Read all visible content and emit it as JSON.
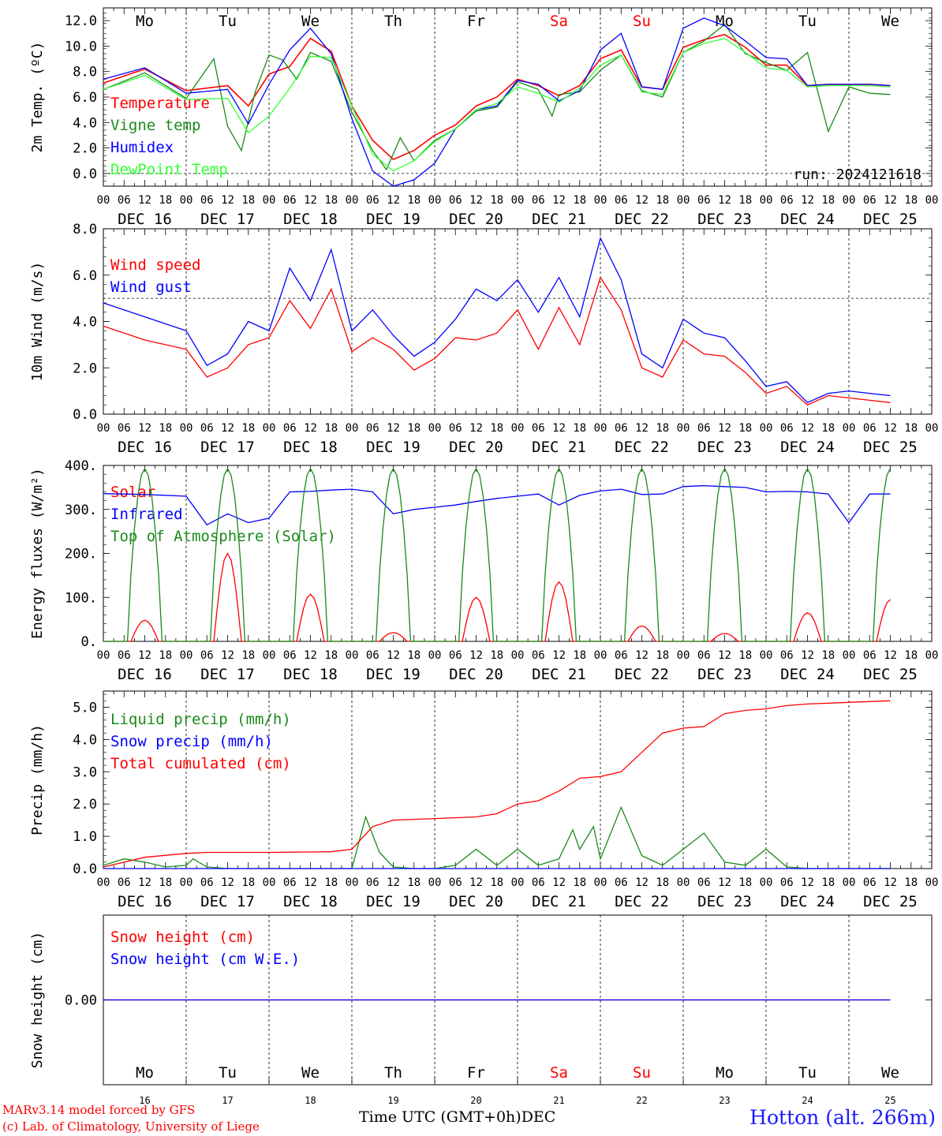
{
  "chart_data": [
    {
      "type": "line",
      "ylabel": "2m Temp. (ºC)",
      "ylim": [
        -1.0,
        13.0
      ],
      "yticks": [
        "0.0",
        "2.0",
        "4.0",
        "6.0",
        "8.0",
        "10.0",
        "12.0"
      ],
      "run_label": "run: 2024121618",
      "series": [
        {
          "name": "Temperature",
          "color": "#ff0000",
          "x": [
            0,
            12,
            24,
            36,
            42,
            48,
            54,
            60,
            66,
            72,
            78,
            84,
            90,
            96,
            102,
            108,
            114,
            120,
            126,
            132,
            138,
            144,
            150,
            156,
            162,
            168,
            174,
            180,
            186,
            192,
            198,
            204,
            210,
            216,
            222,
            228
          ],
          "y": [
            7.1,
            8.2,
            6.5,
            6.9,
            5.3,
            7.8,
            8.4,
            10.6,
            9.6,
            5.3,
            2.6,
            1.1,
            1.8,
            3.0,
            3.8,
            5.3,
            6.0,
            7.4,
            6.9,
            6.1,
            6.9,
            9.0,
            9.7,
            6.8,
            6.6,
            9.9,
            10.5,
            10.9,
            9.9,
            8.5,
            8.5,
            6.9,
            7.0,
            7.0,
            7.0,
            6.9
          ]
        },
        {
          "name": "Vigne temp",
          "color": "#1a8a1a",
          "x": [
            0,
            12,
            24,
            32,
            36,
            40,
            44,
            48,
            52,
            56,
            60,
            66,
            72,
            78,
            82,
            86,
            90,
            96,
            102,
            108,
            114,
            120,
            126,
            130,
            132,
            138,
            144,
            150,
            156,
            162,
            168,
            174,
            180,
            186,
            192,
            198,
            204,
            210,
            216,
            222,
            228
          ],
          "y": [
            6.6,
            7.9,
            5.9,
            9.0,
            3.7,
            1.8,
            6.4,
            9.3,
            8.9,
            7.4,
            9.5,
            8.8,
            4.8,
            1.8,
            0.3,
            2.8,
            1.0,
            2.6,
            3.5,
            4.9,
            5.2,
            7.2,
            6.6,
            4.5,
            6.2,
            6.4,
            8.1,
            9.3,
            6.5,
            6.0,
            9.5,
            10.4,
            11.7,
            9.4,
            8.7,
            8.1,
            9.5,
            3.3,
            6.8,
            6.3,
            6.2
          ]
        },
        {
          "name": "Humidex",
          "color": "#0000ff",
          "x": [
            0,
            12,
            24,
            36,
            42,
            48,
            54,
            60,
            66,
            72,
            78,
            84,
            90,
            96,
            102,
            108,
            114,
            120,
            126,
            132,
            138,
            144,
            150,
            156,
            162,
            168,
            174,
            180,
            186,
            192,
            198,
            204,
            210,
            216,
            222,
            228
          ],
          "y": [
            7.4,
            8.3,
            6.3,
            6.6,
            3.9,
            7.0,
            9.7,
            11.4,
            9.4,
            4.3,
            0.2,
            -1.0,
            -0.5,
            0.8,
            3.5,
            5.0,
            5.3,
            7.3,
            7.0,
            5.7,
            6.5,
            9.7,
            11.0,
            6.8,
            6.6,
            11.4,
            12.2,
            11.6,
            10.4,
            9.1,
            9.0,
            6.9,
            7.0,
            7.0,
            7.0,
            6.9
          ]
        },
        {
          "name": "DewPoint Temp",
          "color": "#33ff33",
          "x": [
            0,
            12,
            24,
            36,
            42,
            48,
            54,
            60,
            66,
            72,
            78,
            84,
            90,
            96,
            102,
            108,
            114,
            120,
            126,
            132,
            138,
            144,
            150,
            156,
            162,
            168,
            174,
            180,
            186,
            192,
            198,
            204,
            210,
            216,
            222,
            228
          ],
          "y": [
            6.6,
            7.7,
            5.8,
            5.9,
            3.2,
            4.5,
            6.7,
            9.2,
            9.1,
            5.3,
            1.5,
            0.2,
            1.0,
            2.5,
            3.5,
            5.0,
            5.5,
            6.8,
            6.3,
            5.6,
            6.7,
            8.5,
            9.3,
            6.4,
            6.2,
            9.5,
            10.2,
            10.6,
            9.5,
            8.3,
            8.1,
            6.8,
            6.9,
            6.9,
            6.9,
            6.8
          ]
        }
      ]
    },
    {
      "type": "line",
      "ylabel": "10m Wind (m/s)",
      "ylim": [
        0.0,
        8.0
      ],
      "yticks": [
        "0.0",
        "2.0",
        "4.0",
        "6.0",
        "8.0"
      ],
      "series": [
        {
          "name": "Wind speed",
          "color": "#ff0000",
          "x": [
            0,
            12,
            24,
            30,
            36,
            42,
            48,
            54,
            60,
            66,
            72,
            78,
            84,
            90,
            96,
            102,
            108,
            114,
            120,
            126,
            132,
            138,
            144,
            150,
            156,
            162,
            168,
            174,
            180,
            186,
            192,
            198,
            204,
            210,
            216,
            222,
            228
          ],
          "y": [
            3.8,
            3.2,
            2.8,
            1.6,
            2.0,
            3.0,
            3.3,
            4.9,
            3.7,
            5.4,
            2.7,
            3.3,
            2.8,
            1.9,
            2.4,
            3.3,
            3.2,
            3.5,
            4.5,
            2.8,
            4.6,
            3.0,
            5.9,
            4.5,
            2.0,
            1.6,
            3.2,
            2.6,
            2.5,
            1.8,
            0.9,
            1.2,
            0.4,
            0.8,
            0.7,
            0.6,
            0.5
          ]
        },
        {
          "name": "Wind gust",
          "color": "#0000ff",
          "x": [
            0,
            12,
            24,
            30,
            36,
            42,
            48,
            54,
            60,
            66,
            72,
            78,
            84,
            90,
            96,
            102,
            108,
            114,
            120,
            126,
            132,
            138,
            144,
            150,
            156,
            162,
            168,
            174,
            180,
            186,
            192,
            198,
            204,
            210,
            216,
            222,
            228
          ],
          "y": [
            4.8,
            4.2,
            3.6,
            2.1,
            2.6,
            4.0,
            3.6,
            6.3,
            4.9,
            7.1,
            3.6,
            4.5,
            3.4,
            2.5,
            3.1,
            4.1,
            5.4,
            4.9,
            5.8,
            4.4,
            5.9,
            4.2,
            7.6,
            5.8,
            2.6,
            2.0,
            4.1,
            3.5,
            3.3,
            2.3,
            1.2,
            1.4,
            0.5,
            0.9,
            1.0,
            0.9,
            0.8
          ]
        }
      ]
    },
    {
      "type": "line",
      "ylabel": "Energy fluxes (W/m²)",
      "ylim": [
        0,
        400
      ],
      "yticks": [
        "0.",
        "100.",
        "200.",
        "300.",
        "400."
      ],
      "series": [
        {
          "name": "Solar",
          "color": "#ff0000",
          "peaks": [
            48,
            200,
            107,
            20,
            100,
            135,
            35,
            18,
            65,
            95
          ]
        },
        {
          "name": "Infrared",
          "color": "#0000ff",
          "x": [
            0,
            12,
            24,
            30,
            36,
            42,
            48,
            54,
            60,
            66,
            72,
            78,
            84,
            90,
            96,
            102,
            108,
            114,
            120,
            126,
            132,
            138,
            144,
            150,
            156,
            162,
            168,
            174,
            180,
            186,
            192,
            198,
            204,
            210,
            216,
            222,
            228
          ],
          "y": [
            336,
            334,
            330,
            265,
            290,
            270,
            280,
            340,
            341,
            344,
            346,
            340,
            290,
            300,
            305,
            310,
            318,
            325,
            330,
            335,
            310,
            332,
            342,
            346,
            334,
            335,
            352,
            354,
            352,
            350,
            340,
            341,
            340,
            335,
            270,
            335,
            335
          ]
        },
        {
          "name": "Top of Atmosphere (Solar)",
          "color": "#1a8a1a",
          "daily_peak": 393
        }
      ]
    },
    {
      "type": "line",
      "ylabel": "Precip (mm/h)",
      "ylim": [
        0.0,
        5.5
      ],
      "yticks": [
        "0.0",
        "1.0",
        "2.0",
        "3.0",
        "4.0",
        "5.0"
      ],
      "series": [
        {
          "name": "Liquid precip (mm/h)",
          "color": "#1a8a1a",
          "x": [
            0,
            6,
            12,
            18,
            24,
            26,
            30,
            36,
            48,
            72,
            76,
            80,
            84,
            90,
            96,
            102,
            108,
            114,
            120,
            126,
            132,
            136,
            138,
            142,
            144,
            150,
            156,
            162,
            168,
            174,
            180,
            186,
            192,
            198,
            204,
            210,
            216,
            222,
            228
          ],
          "y": [
            0.1,
            0.3,
            0.2,
            0.05,
            0.1,
            0.3,
            0.05,
            0.0,
            0.0,
            0.0,
            1.6,
            0.5,
            0.05,
            0.0,
            0.0,
            0.1,
            0.6,
            0.1,
            0.6,
            0.1,
            0.3,
            1.2,
            0.6,
            1.3,
            0.3,
            1.9,
            0.4,
            0.1,
            0.6,
            1.1,
            0.2,
            0.1,
            0.6,
            0.05,
            0.0,
            0.0,
            0.0,
            0.0,
            0.0
          ]
        },
        {
          "name": "Snow precip (mm/h)",
          "color": "#0000ff",
          "x": [
            0,
            228
          ],
          "y": [
            0.0,
            0.0
          ]
        },
        {
          "name": "Total cumulated (cm)",
          "color": "#ff0000",
          "x": [
            0,
            12,
            24,
            30,
            48,
            66,
            72,
            78,
            84,
            96,
            108,
            114,
            120,
            126,
            132,
            138,
            144,
            150,
            156,
            162,
            168,
            174,
            180,
            186,
            192,
            198,
            204,
            216,
            228
          ],
          "y": [
            0.05,
            0.35,
            0.47,
            0.5,
            0.5,
            0.52,
            0.6,
            1.3,
            1.5,
            1.55,
            1.6,
            1.7,
            2.0,
            2.1,
            2.4,
            2.8,
            2.85,
            3.0,
            3.6,
            4.2,
            4.35,
            4.4,
            4.8,
            4.9,
            4.95,
            5.05,
            5.1,
            5.15,
            5.2
          ]
        }
      ]
    },
    {
      "type": "line",
      "ylabel": "Snow height (cm)",
      "yticks": [
        "0.00"
      ],
      "series": [
        {
          "name": "Snow height (cm)",
          "color": "#ff0000",
          "x": [
            0,
            228
          ],
          "y": [
            0.0,
            0.0
          ]
        },
        {
          "name": "Snow height (cm W.E.)",
          "color": "#0000ff",
          "x": [
            0,
            228
          ],
          "y": [
            0.0,
            0.0
          ]
        }
      ]
    }
  ],
  "x_axis": {
    "hour_labels": [
      "00",
      "06",
      "12",
      "18"
    ],
    "end_label": "00",
    "date_labels": [
      "DEC 16",
      "DEC 17",
      "DEC 18",
      "DEC 19",
      "DEC 20",
      "DEC 21",
      "DEC 22",
      "DEC 23",
      "DEC 24",
      "DEC 25"
    ],
    "day_labels": [
      {
        "text": "Mo",
        "weekend": false
      },
      {
        "text": "Tu",
        "weekend": false
      },
      {
        "text": "We",
        "weekend": false
      },
      {
        "text": "Th",
        "weekend": false
      },
      {
        "text": "Fr",
        "weekend": false
      },
      {
        "text": "Sa",
        "weekend": true
      },
      {
        "text": "Su",
        "weekend": true
      },
      {
        "text": "Mo",
        "weekend": false
      },
      {
        "text": "Tu",
        "weekend": false
      },
      {
        "text": "We",
        "weekend": false
      }
    ],
    "day_numbers": [
      "16",
      "17",
      "18",
      "19",
      "20",
      "21",
      "22",
      "23",
      "24",
      "25"
    ]
  },
  "footer": {
    "model_line": "MARv3.14 model forced by GFS",
    "credit_line": "(c) Lab. of Climatology, University of Liege",
    "xlabel": "Time UTC (GMT+0h)",
    "month": "DEC",
    "station": "Hotton (alt. 266m)"
  },
  "colors": {
    "weekend_day": "#ff0000",
    "weekday": "#000000"
  }
}
